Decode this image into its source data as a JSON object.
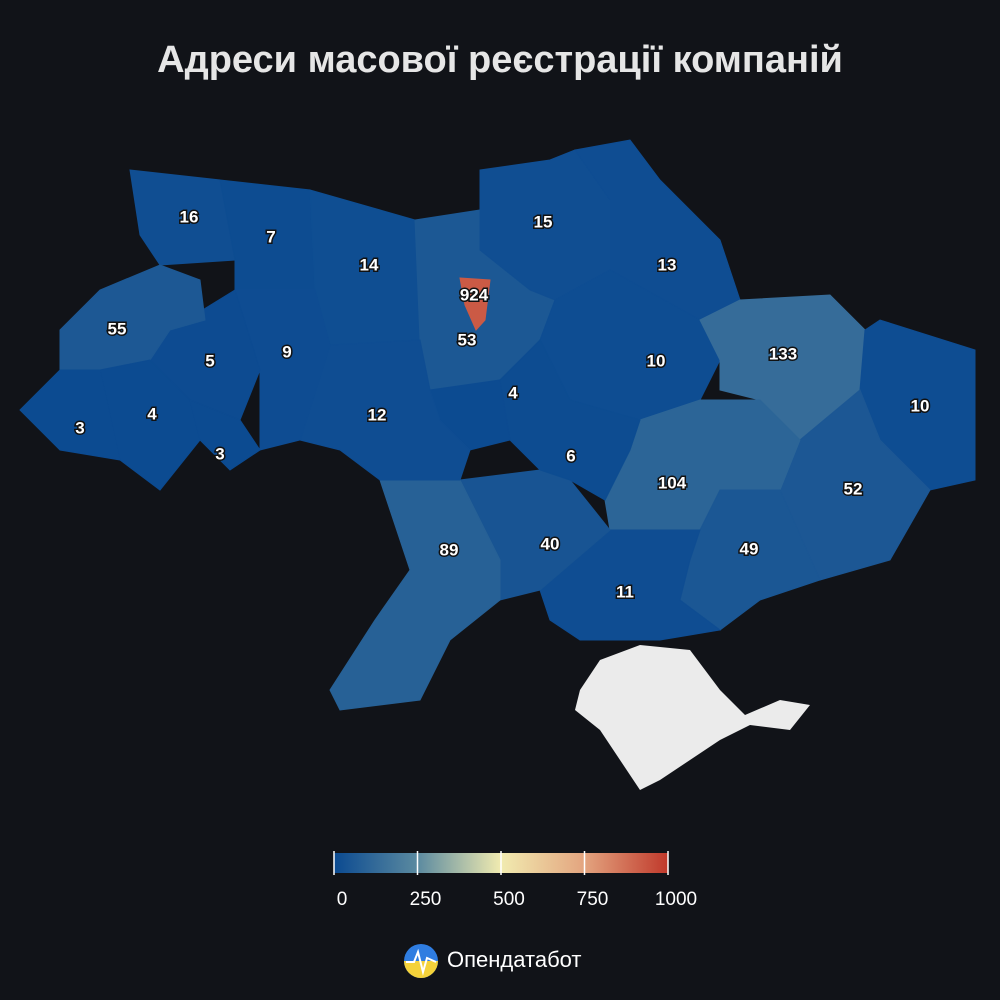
{
  "title": "Адреси масової реєстрації компаній",
  "regions": [
    16,
    7,
    14,
    924,
    53,
    15,
    13,
    10,
    133,
    10,
    52,
    104,
    49,
    11,
    40,
    89,
    6,
    4,
    12,
    9,
    5,
    55,
    4,
    3,
    3
  ],
  "colorbar": {
    "range": [
      0,
      1000
    ],
    "ticks": [
      0,
      250,
      500,
      750,
      1000
    ],
    "colors": [
      "#0b4a91",
      "#5b8aa0",
      "#f1ebb0",
      "#e3a47f",
      "#c0392b"
    ]
  },
  "brand": "Опендатабот"
}
